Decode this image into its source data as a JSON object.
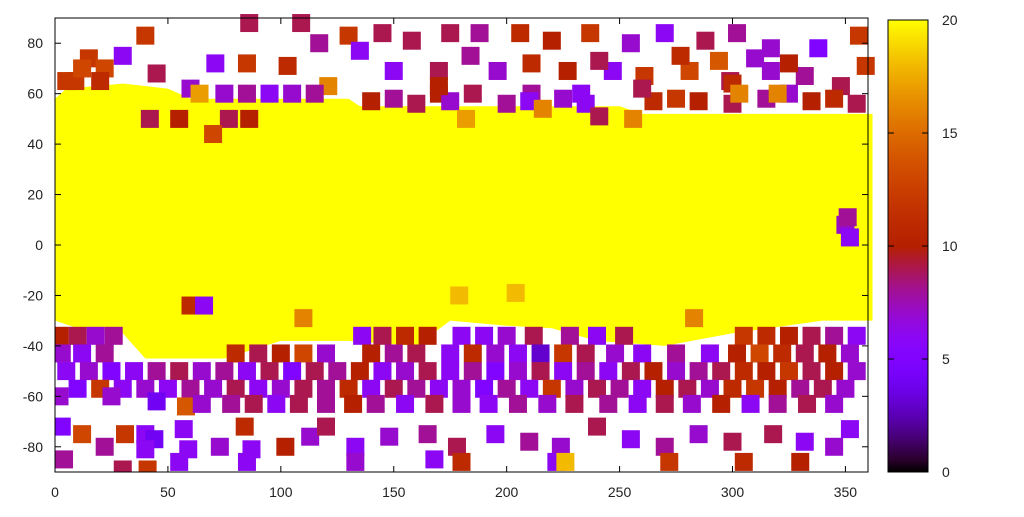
{
  "chart_data": {
    "type": "scatter",
    "title": "",
    "xlabel": "",
    "ylabel": "",
    "xlim": [
      0,
      360
    ],
    "ylim": [
      -90,
      90
    ],
    "x_ticks": [
      "0",
      "50",
      "100",
      "150",
      "200",
      "250",
      "300",
      "350"
    ],
    "y_ticks": [
      "-80",
      "-60",
      "-40",
      "-20",
      "0",
      "20",
      "40",
      "60",
      "80"
    ],
    "colorbar": {
      "range": [
        0,
        20
      ],
      "ticks": [
        "0",
        "5",
        "10",
        "15",
        "20"
      ],
      "palette": "black-purple-red-yellow",
      "colors": [
        "#000000",
        "#7f00ff",
        "#b22000",
        "#e07000",
        "#ffff00"
      ]
    },
    "marker": "square",
    "grid": false,
    "legend": "none",
    "dense_regions": [
      {
        "value": 20,
        "outline": [
          [
            0,
            58
          ],
          [
            5,
            62
          ],
          [
            30,
            64
          ],
          [
            50,
            62
          ],
          [
            60,
            58
          ],
          [
            130,
            58
          ],
          [
            135,
            55
          ],
          [
            250,
            55
          ],
          [
            260,
            52
          ],
          [
            362,
            52
          ],
          [
            362,
            -30
          ],
          [
            340,
            -30
          ],
          [
            300,
            -35
          ],
          [
            270,
            -40
          ],
          [
            240,
            -38
          ],
          [
            220,
            -33
          ],
          [
            200,
            -32
          ],
          [
            175,
            -30
          ],
          [
            160,
            -40
          ],
          [
            130,
            -38
          ],
          [
            100,
            -38
          ],
          [
            75,
            -45
          ],
          [
            40,
            -45
          ],
          [
            30,
            -35
          ],
          [
            10,
            -33
          ],
          [
            0,
            -30
          ]
        ]
      }
    ],
    "points": [
      [
        86,
        88,
        9
      ],
      [
        109,
        88,
        9
      ],
      [
        40,
        83,
        12
      ],
      [
        15,
        74,
        12
      ],
      [
        30,
        75,
        6
      ],
      [
        9,
        65,
        12
      ],
      [
        22,
        70,
        13
      ],
      [
        71,
        72,
        6
      ],
      [
        85,
        72,
        12
      ],
      [
        103,
        71,
        11
      ],
      [
        117,
        80,
        8
      ],
      [
        130,
        83,
        12
      ],
      [
        145,
        84,
        9
      ],
      [
        135,
        77,
        6
      ],
      [
        158,
        81,
        9
      ],
      [
        175,
        84,
        9
      ],
      [
        188,
        84,
        8
      ],
      [
        206,
        84,
        11
      ],
      [
        220,
        81,
        10
      ],
      [
        237,
        84,
        12
      ],
      [
        255,
        80,
        7
      ],
      [
        270,
        84,
        6
      ],
      [
        288,
        81,
        9
      ],
      [
        302,
        84,
        8
      ],
      [
        317,
        78,
        7
      ],
      [
        338,
        78,
        5
      ],
      [
        356,
        83,
        12
      ],
      [
        121,
        63,
        16
      ],
      [
        170,
        69,
        9
      ],
      [
        196,
        69,
        7
      ],
      [
        211,
        72,
        11
      ],
      [
        227,
        69,
        10
      ],
      [
        247,
        69,
        6
      ],
      [
        261,
        67,
        12
      ],
      [
        281,
        69,
        13
      ],
      [
        299,
        65,
        9
      ],
      [
        317,
        69,
        7
      ],
      [
        332,
        67,
        8
      ],
      [
        348,
        63,
        9
      ],
      [
        359,
        71,
        12
      ],
      [
        184,
        75,
        8
      ],
      [
        241,
        73,
        9
      ],
      [
        277,
        75,
        11
      ],
      [
        294,
        73,
        14
      ],
      [
        310,
        74,
        7
      ],
      [
        325,
        72,
        10
      ],
      [
        150,
        69,
        6
      ],
      [
        170,
        60,
        10
      ],
      [
        211,
        60,
        8
      ],
      [
        233,
        60,
        6
      ],
      [
        5,
        65,
        12
      ],
      [
        20,
        65,
        11
      ],
      [
        12,
        70,
        13
      ],
      [
        45,
        68,
        9
      ],
      [
        140,
        57,
        10
      ],
      [
        150,
        58,
        8
      ],
      [
        160,
        56,
        9
      ],
      [
        175,
        57,
        7
      ],
      [
        185,
        60,
        9
      ],
      [
        200,
        56,
        8
      ],
      [
        210,
        57,
        6
      ],
      [
        225,
        58,
        7
      ],
      [
        235,
        56,
        6
      ],
      [
        265,
        57,
        11
      ],
      [
        275,
        58,
        12
      ],
      [
        285,
        57,
        10
      ],
      [
        300,
        56,
        9
      ],
      [
        315,
        58,
        8
      ],
      [
        325,
        60,
        7
      ],
      [
        335,
        57,
        10
      ],
      [
        345,
        58,
        11
      ],
      [
        355,
        56,
        9
      ],
      [
        170,
        63,
        10
      ],
      [
        260,
        62,
        9
      ],
      [
        300,
        64,
        11
      ],
      [
        75,
        60,
        7
      ],
      [
        85,
        60,
        8
      ],
      [
        95,
        60,
        6
      ],
      [
        105,
        60,
        7
      ],
      [
        115,
        60,
        8
      ],
      [
        60,
        62,
        7
      ],
      [
        42,
        50,
        9
      ],
      [
        55,
        50,
        10
      ],
      [
        77,
        50,
        9
      ],
      [
        86,
        50,
        10
      ],
      [
        241,
        51,
        9
      ],
      [
        64,
        60,
        17
      ],
      [
        182,
        50,
        17
      ],
      [
        216,
        54,
        16
      ],
      [
        256,
        50,
        16
      ],
      [
        303,
        60,
        16
      ],
      [
        320,
        60,
        16
      ],
      [
        70,
        44,
        13
      ],
      [
        60,
        -24,
        11
      ],
      [
        66,
        -24,
        6
      ],
      [
        110,
        -29,
        16
      ],
      [
        283,
        -29,
        16
      ],
      [
        179,
        -20,
        18
      ],
      [
        204,
        -19,
        18
      ],
      [
        350,
        8,
        7
      ],
      [
        352,
        3,
        6
      ],
      [
        351,
        11,
        8
      ],
      [
        2,
        -36,
        10
      ],
      [
        10,
        -36,
        9
      ],
      [
        18,
        -36,
        7
      ],
      [
        26,
        -36,
        8
      ],
      [
        136,
        -36,
        6
      ],
      [
        145,
        -36,
        9
      ],
      [
        155,
        -36,
        11
      ],
      [
        165,
        -36,
        10
      ],
      [
        180,
        -36,
        6
      ],
      [
        190,
        -36,
        6
      ],
      [
        200,
        -36,
        7
      ],
      [
        212,
        -36,
        9
      ],
      [
        228,
        -36,
        8
      ],
      [
        240,
        -36,
        6
      ],
      [
        252,
        -36,
        9
      ],
      [
        305,
        -36,
        12
      ],
      [
        315,
        -36,
        11
      ],
      [
        325,
        -36,
        10
      ],
      [
        335,
        -36,
        9
      ],
      [
        345,
        -36,
        8
      ],
      [
        355,
        -36,
        6
      ],
      [
        3,
        -43,
        7
      ],
      [
        12,
        -43,
        6
      ],
      [
        22,
        -43,
        8
      ],
      [
        80,
        -43,
        11
      ],
      [
        90,
        -43,
        9
      ],
      [
        100,
        -43,
        10
      ],
      [
        110,
        -43,
        13
      ],
      [
        120,
        -43,
        7
      ],
      [
        140,
        -43,
        10
      ],
      [
        150,
        -43,
        8
      ],
      [
        160,
        -43,
        9
      ],
      [
        175,
        -43,
        6
      ],
      [
        185,
        -43,
        11
      ],
      [
        195,
        -43,
        7
      ],
      [
        205,
        -43,
        6
      ],
      [
        215,
        -43,
        3
      ],
      [
        225,
        -43,
        12
      ],
      [
        235,
        -43,
        9
      ],
      [
        248,
        -43,
        7
      ],
      [
        260,
        -43,
        6
      ],
      [
        275,
        -43,
        8
      ],
      [
        290,
        -43,
        6
      ],
      [
        302,
        -43,
        10
      ],
      [
        312,
        -43,
        13
      ],
      [
        322,
        -43,
        11
      ],
      [
        332,
        -43,
        9
      ],
      [
        342,
        -43,
        10
      ],
      [
        352,
        -43,
        7
      ],
      [
        5,
        -50,
        6
      ],
      [
        15,
        -50,
        7
      ],
      [
        25,
        -50,
        5
      ],
      [
        35,
        -50,
        6
      ],
      [
        45,
        -50,
        8
      ],
      [
        55,
        -50,
        9
      ],
      [
        65,
        -50,
        7
      ],
      [
        75,
        -50,
        8
      ],
      [
        85,
        -50,
        6
      ],
      [
        95,
        -50,
        9
      ],
      [
        105,
        -50,
        5
      ],
      [
        115,
        -50,
        9
      ],
      [
        125,
        -50,
        8
      ],
      [
        135,
        -50,
        10
      ],
      [
        145,
        -50,
        6
      ],
      [
        155,
        -50,
        7
      ],
      [
        165,
        -50,
        9
      ],
      [
        175,
        -50,
        6
      ],
      [
        185,
        -50,
        8
      ],
      [
        195,
        -50,
        5
      ],
      [
        205,
        -50,
        7
      ],
      [
        215,
        -50,
        9
      ],
      [
        225,
        -50,
        6
      ],
      [
        235,
        -50,
        8
      ],
      [
        245,
        -50,
        6
      ],
      [
        255,
        -50,
        9
      ],
      [
        265,
        -50,
        10
      ],
      [
        275,
        -50,
        7
      ],
      [
        285,
        -50,
        8
      ],
      [
        295,
        -50,
        9
      ],
      [
        305,
        -50,
        11
      ],
      [
        315,
        -50,
        10
      ],
      [
        325,
        -50,
        12
      ],
      [
        335,
        -50,
        9
      ],
      [
        345,
        -50,
        10
      ],
      [
        355,
        -50,
        7
      ],
      [
        10,
        -57,
        5
      ],
      [
        20,
        -57,
        12
      ],
      [
        30,
        -57,
        6
      ],
      [
        40,
        -57,
        7
      ],
      [
        50,
        -57,
        6
      ],
      [
        60,
        -57,
        8
      ],
      [
        70,
        -57,
        7
      ],
      [
        80,
        -57,
        9
      ],
      [
        90,
        -57,
        6
      ],
      [
        100,
        -57,
        7
      ],
      [
        110,
        -57,
        9
      ],
      [
        120,
        -57,
        8
      ],
      [
        130,
        -57,
        11
      ],
      [
        140,
        -57,
        6
      ],
      [
        150,
        -57,
        9
      ],
      [
        160,
        -57,
        8
      ],
      [
        170,
        -57,
        6
      ],
      [
        180,
        -57,
        7
      ],
      [
        190,
        -57,
        5
      ],
      [
        200,
        -57,
        8
      ],
      [
        210,
        -57,
        6
      ],
      [
        220,
        -57,
        12
      ],
      [
        230,
        -57,
        7
      ],
      [
        240,
        -57,
        9
      ],
      [
        250,
        -57,
        8
      ],
      [
        260,
        -57,
        6
      ],
      [
        270,
        -57,
        10
      ],
      [
        280,
        -57,
        9
      ],
      [
        290,
        -57,
        7
      ],
      [
        300,
        -57,
        11
      ],
      [
        310,
        -57,
        12
      ],
      [
        320,
        -57,
        10
      ],
      [
        330,
        -57,
        8
      ],
      [
        340,
        -57,
        9
      ],
      [
        350,
        -57,
        7
      ],
      [
        2,
        -60,
        7
      ],
      [
        25,
        -60,
        7
      ],
      [
        45,
        -62,
        4
      ],
      [
        58,
        -64,
        14
      ],
      [
        65,
        -63,
        7
      ],
      [
        78,
        -63,
        8
      ],
      [
        88,
        -63,
        9
      ],
      [
        98,
        -63,
        6
      ],
      [
        108,
        -63,
        9
      ],
      [
        120,
        -63,
        8
      ],
      [
        132,
        -63,
        10
      ],
      [
        142,
        -63,
        8
      ],
      [
        155,
        -63,
        6
      ],
      [
        168,
        -63,
        9
      ],
      [
        180,
        -63,
        7
      ],
      [
        192,
        -63,
        6
      ],
      [
        205,
        -63,
        8
      ],
      [
        218,
        -63,
        7
      ],
      [
        230,
        -63,
        9
      ],
      [
        245,
        -63,
        8
      ],
      [
        258,
        -63,
        6
      ],
      [
        270,
        -63,
        9
      ],
      [
        282,
        -63,
        7
      ],
      [
        295,
        -63,
        10
      ],
      [
        308,
        -63,
        6
      ],
      [
        320,
        -63,
        8
      ],
      [
        333,
        -63,
        9
      ],
      [
        345,
        -63,
        7
      ],
      [
        3,
        -72,
        5
      ],
      [
        12,
        -75,
        13
      ],
      [
        40,
        -75,
        6
      ],
      [
        44,
        -77,
        4
      ],
      [
        31,
        -75,
        12
      ],
      [
        22,
        -80,
        8
      ],
      [
        4,
        -85,
        8
      ],
      [
        40,
        -81,
        6
      ],
      [
        57,
        -73,
        6
      ],
      [
        59,
        -81,
        6
      ],
      [
        55,
        -86,
        6
      ],
      [
        73,
        -80,
        7
      ],
      [
        84,
        -72,
        11
      ],
      [
        87,
        -81,
        6
      ],
      [
        85,
        -86,
        6
      ],
      [
        102,
        -80,
        10
      ],
      [
        113,
        -76,
        7
      ],
      [
        120,
        -72,
        9
      ],
      [
        133,
        -80,
        6
      ],
      [
        148,
        -76,
        7
      ],
      [
        165,
        -75,
        8
      ],
      [
        178,
        -80,
        9
      ],
      [
        180,
        -86,
        11
      ],
      [
        195,
        -75,
        6
      ],
      [
        210,
        -78,
        8
      ],
      [
        224,
        -80,
        7
      ],
      [
        222,
        -86,
        6
      ],
      [
        226,
        -86,
        18
      ],
      [
        240,
        -72,
        9
      ],
      [
        255,
        -77,
        6
      ],
      [
        270,
        -80,
        8
      ],
      [
        272,
        -86,
        12
      ],
      [
        285,
        -75,
        7
      ],
      [
        300,
        -78,
        9
      ],
      [
        305,
        -86,
        11
      ],
      [
        318,
        -75,
        9
      ],
      [
        330,
        -86,
        10
      ],
      [
        332,
        -78,
        6
      ],
      [
        345,
        -80,
        7
      ],
      [
        352,
        -73,
        6
      ],
      [
        30,
        -89,
        9
      ],
      [
        41,
        -89,
        12
      ],
      [
        168,
        -85,
        6
      ],
      [
        133,
        -86,
        7
      ]
    ]
  }
}
